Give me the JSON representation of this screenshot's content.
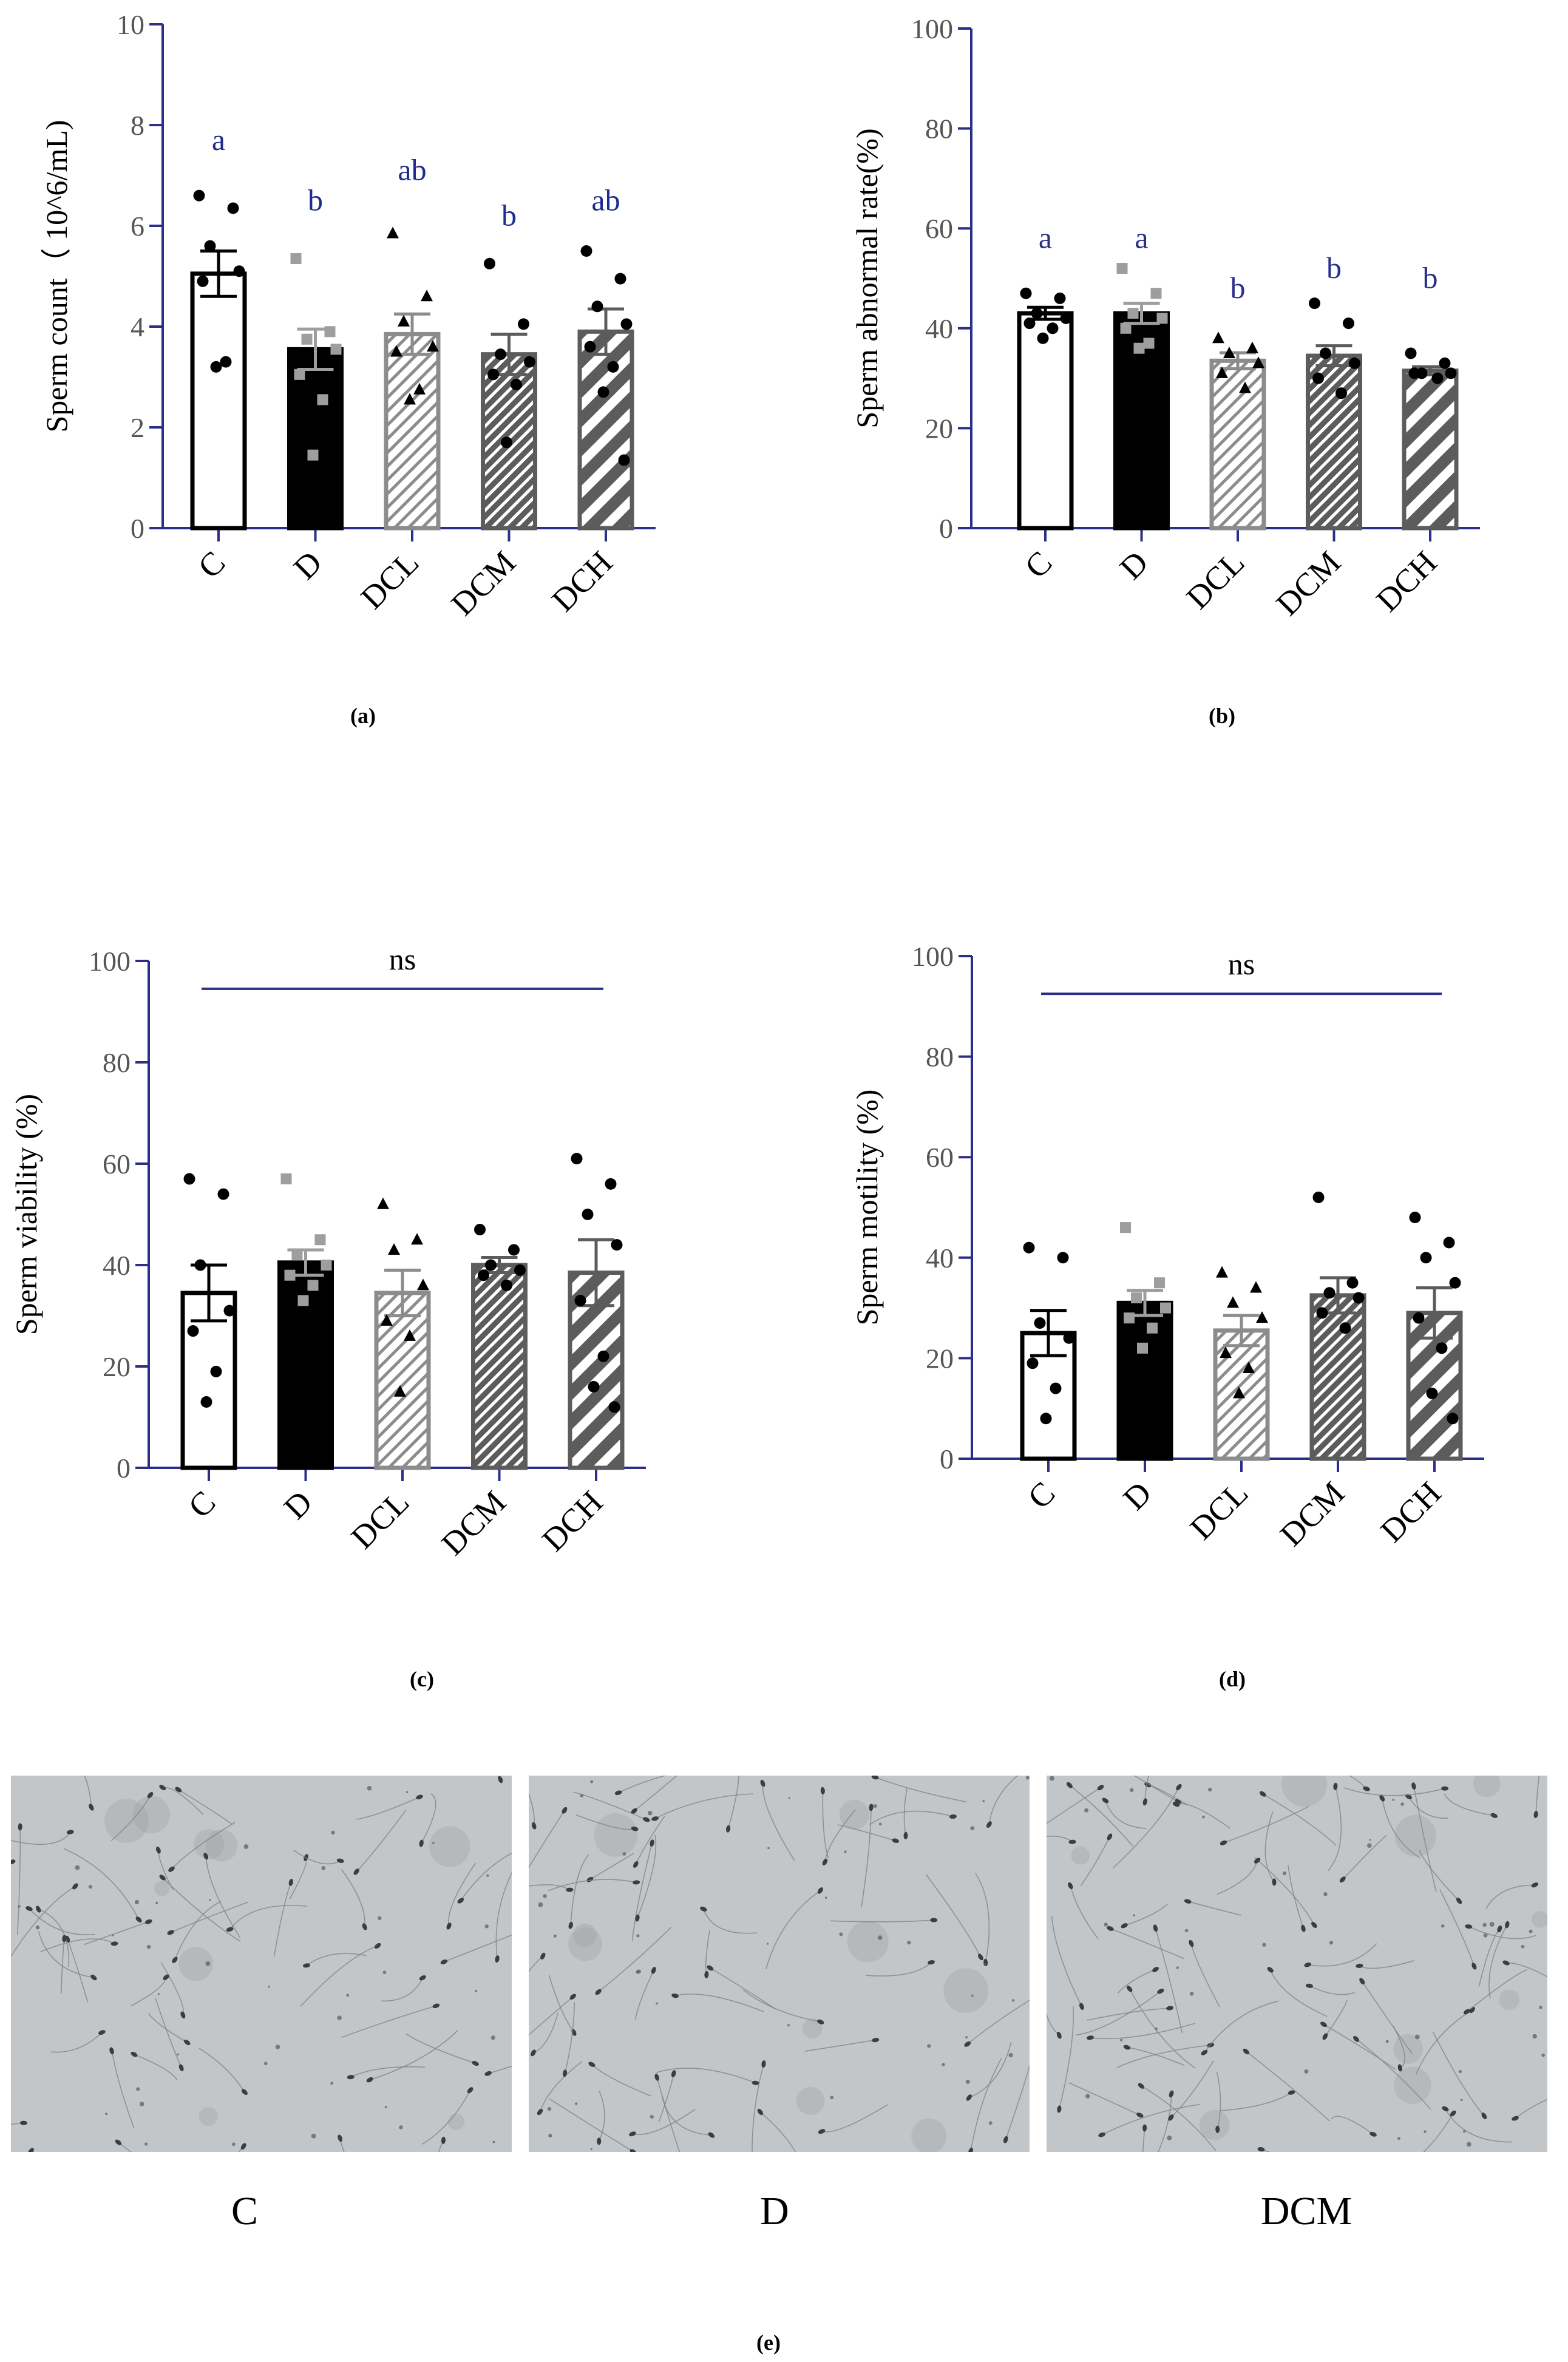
{
  "colors": {
    "axis": "#2b2f8a",
    "letter": "#1e2d8c",
    "c_fill": "#ffffff",
    "d_fill": "#000000",
    "gray_marker": "#9e9e9e",
    "hatch_light": "#8c8c8c",
    "hatch_dark": "#5c5c5c",
    "micro_bg": "#c3c6c8"
  },
  "chart_data": [
    {
      "id": "a",
      "type": "bar",
      "panel_label": "(a)",
      "ylabel": "Sperm count（ 10^6/mL)",
      "categories": [
        "C",
        "D",
        "DCL",
        "DCM",
        "DCH"
      ],
      "values": [
        5.05,
        3.55,
        3.85,
        3.45,
        3.9
      ],
      "sem": [
        0.45,
        0.4,
        0.4,
        0.4,
        0.45
      ],
      "ylim": [
        0,
        10
      ],
      "yticks": [
        0,
        2,
        4,
        6,
        8,
        10
      ],
      "letters": [
        "a",
        "b",
        "ab",
        "b",
        "ab"
      ],
      "letter_y": [
        7.7,
        6.5,
        7.1,
        6.2,
        6.5
      ],
      "letter_color": "letter",
      "points": [
        [
          6.6,
          6.35,
          5.6,
          5.1,
          4.9,
          3.3,
          3.2
        ],
        [
          5.35,
          3.9,
          3.75,
          3.55,
          3.05,
          2.55,
          1.45
        ],
        [
          5.85,
          4.6,
          4.1,
          3.6,
          3.5,
          2.75,
          2.55
        ],
        [
          5.25,
          4.05,
          3.45,
          3.3,
          3.05,
          2.85,
          1.7
        ],
        [
          5.5,
          4.95,
          4.4,
          4.05,
          3.6,
          3.2,
          2.7,
          1.35
        ]
      ],
      "ns": false
    },
    {
      "id": "b",
      "type": "bar",
      "panel_label": "(b)",
      "ylabel": "Sperm abnormal rate(%)",
      "categories": [
        "C",
        "D",
        "DCL",
        "DCM",
        "DCH"
      ],
      "values": [
        43,
        43,
        33.5,
        34.5,
        31.5
      ],
      "sem": [
        1.2,
        2,
        1.6,
        2,
        0.8
      ],
      "ylim": [
        0,
        100
      ],
      "yticks": [
        0,
        20,
        40,
        60,
        80,
        100
      ],
      "letters": [
        "a",
        "a",
        "b",
        "b",
        "b"
      ],
      "letter_y": [
        58,
        58,
        48,
        52,
        50
      ],
      "letter_color": "axis",
      "points": [
        [
          47,
          46,
          43,
          42,
          41,
          40,
          38
        ],
        [
          52,
          47,
          43,
          42,
          40,
          37,
          36
        ],
        [
          38,
          36,
          35,
          33,
          31,
          28
        ],
        [
          45,
          41,
          35,
          33,
          30,
          27
        ],
        [
          35,
          33,
          31,
          31,
          31,
          30
        ]
      ],
      "ns": false
    },
    {
      "id": "c",
      "type": "bar",
      "panel_label": "(c)",
      "ylabel": "Sperm viability (%)",
      "categories": [
        "C",
        "D",
        "DCL",
        "DCM",
        "DCH"
      ],
      "values": [
        34.5,
        40.5,
        34.5,
        40,
        38.5
      ],
      "sem": [
        5.5,
        2.5,
        4.5,
        1.5,
        6.5
      ],
      "ylim": [
        0,
        100
      ],
      "yticks": [
        0,
        20,
        40,
        60,
        80,
        100
      ],
      "letters": [],
      "points": [
        [
          57,
          54,
          40,
          31,
          27,
          19,
          13
        ],
        [
          57,
          45,
          42,
          40,
          38,
          36,
          33
        ],
        [
          52,
          45,
          43,
          36,
          29,
          26,
          15
        ],
        [
          47,
          43,
          40,
          39,
          38,
          36
        ],
        [
          61,
          56,
          50,
          44,
          33,
          22,
          16,
          12
        ]
      ],
      "ns": true,
      "ns_label": "ns",
      "ns_y": 94.5
    },
    {
      "id": "d",
      "type": "bar",
      "panel_label": "(d)",
      "ylabel": "Sperm motility (%)",
      "categories": [
        "C",
        "D",
        "DCL",
        "DCM",
        "DCH"
      ],
      "values": [
        25,
        31,
        25.5,
        32.5,
        29
      ],
      "sem": [
        4.5,
        2.5,
        3,
        3.5,
        5
      ],
      "ylim": [
        0,
        100
      ],
      "yticks": [
        0,
        20,
        40,
        60,
        80,
        100
      ],
      "letters": [],
      "points": [
        [
          42,
          40,
          27,
          24,
          19,
          14,
          8
        ],
        [
          46,
          35,
          32,
          30,
          28,
          26,
          22
        ],
        [
          37,
          34,
          31,
          28,
          21,
          18,
          13
        ],
        [
          52,
          35,
          33,
          32,
          29,
          26
        ],
        [
          48,
          43,
          40,
          35,
          28,
          22,
          13,
          8
        ]
      ],
      "ns": true,
      "ns_label": "ns",
      "ns_y": 92.5
    }
  ],
  "panel_e": {
    "panel_label": "(e)",
    "images": [
      {
        "label": "C"
      },
      {
        "label": "D"
      },
      {
        "label": "DCM"
      }
    ]
  }
}
